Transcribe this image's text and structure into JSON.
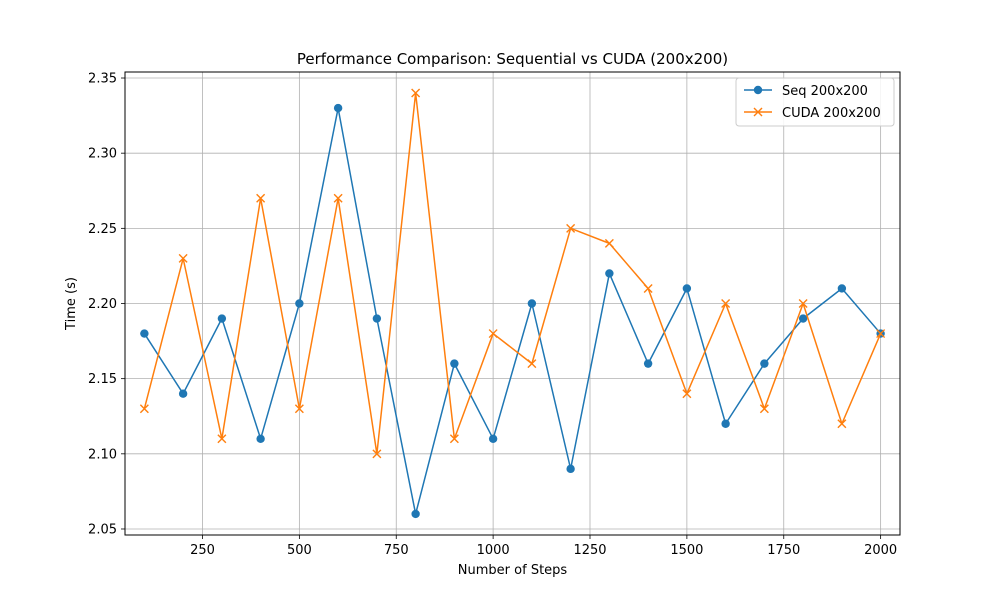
{
  "chart_data": {
    "type": "line",
    "title": "Performance Comparison: Sequential vs CUDA (200x200)",
    "xlabel": "Number of Steps",
    "ylabel": "Time (s)",
    "xlim": [
      50,
      2050
    ],
    "ylim": [
      2.046,
      2.354
    ],
    "xticks": [
      250,
      500,
      750,
      1000,
      1250,
      1500,
      1750,
      2000
    ],
    "yticks": [
      2.05,
      2.1,
      2.15,
      2.2,
      2.25,
      2.3,
      2.35
    ],
    "ytick_labels": [
      "2.05",
      "2.10",
      "2.15",
      "2.20",
      "2.25",
      "2.30",
      "2.35"
    ],
    "grid": true,
    "legend_position": "top-right",
    "x": [
      100,
      200,
      300,
      400,
      500,
      600,
      700,
      800,
      900,
      1000,
      1100,
      1200,
      1300,
      1400,
      1500,
      1600,
      1700,
      1800,
      1900,
      2000
    ],
    "series": [
      {
        "name": "Seq 200x200",
        "color": "#1f77b4",
        "marker": "circle",
        "values": [
          2.18,
          2.14,
          2.19,
          2.11,
          2.2,
          2.33,
          2.19,
          2.06,
          2.16,
          2.11,
          2.2,
          2.09,
          2.22,
          2.16,
          2.21,
          2.12,
          2.16,
          2.19,
          2.21,
          2.18
        ]
      },
      {
        "name": "CUDA 200x200",
        "color": "#ff7f0e",
        "marker": "x",
        "values": [
          2.13,
          2.23,
          2.11,
          2.27,
          2.13,
          2.27,
          2.1,
          2.34,
          2.11,
          2.18,
          2.16,
          2.25,
          2.24,
          2.21,
          2.14,
          2.2,
          2.13,
          2.2,
          2.12,
          2.18
        ]
      }
    ]
  }
}
